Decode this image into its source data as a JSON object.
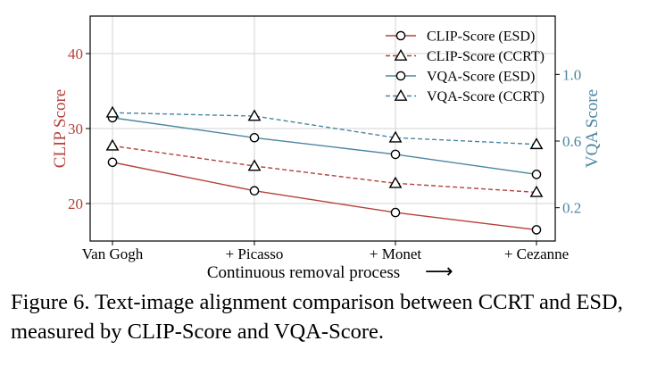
{
  "chart_data": {
    "type": "line",
    "categories": [
      "Van Gogh",
      "+ Picasso",
      "+ Monet",
      "+ Cezanne"
    ],
    "xlabel": "Continuous removal process",
    "xlabel_arrow": "⟶",
    "ylabel_left": "CLIP Score",
    "ylabel_right": "VQA Score",
    "ylim_left": [
      15,
      45
    ],
    "yticks_left": [
      20,
      30,
      40
    ],
    "ylim_right": [
      0.0,
      1.35
    ],
    "yticks_right": [
      0.2,
      0.6,
      1.0
    ],
    "grid": true,
    "legend_position": "top-right",
    "series": [
      {
        "name": "CLIP-Score (ESD)",
        "axis": "left",
        "style": "solid",
        "marker": "circle",
        "color": "#b5403a",
        "values": [
          25.5,
          21.7,
          18.8,
          16.5
        ]
      },
      {
        "name": "CLIP-Score (CCRT)",
        "axis": "left",
        "style": "dashed",
        "marker": "triangle",
        "color": "#b5403a",
        "values": [
          27.7,
          25.0,
          22.7,
          21.5
        ]
      },
      {
        "name": "VQA-Score (ESD)",
        "axis": "right",
        "style": "solid",
        "marker": "circle",
        "color": "#4a86a0",
        "values": [
          0.74,
          0.62,
          0.52,
          0.4
        ]
      },
      {
        "name": "VQA-Score (CCRT)",
        "axis": "right",
        "style": "dashed",
        "marker": "triangle",
        "color": "#4a86a0",
        "values": [
          0.77,
          0.75,
          0.62,
          0.58
        ]
      }
    ],
    "colors": {
      "left_axis": "#b5403a",
      "right_axis": "#4a86a0",
      "grid": "#d3d3d3"
    }
  },
  "caption": "Figure 6. Text-image alignment comparison between CCRT and ESD, measured by CLIP-Score and VQA-Score."
}
